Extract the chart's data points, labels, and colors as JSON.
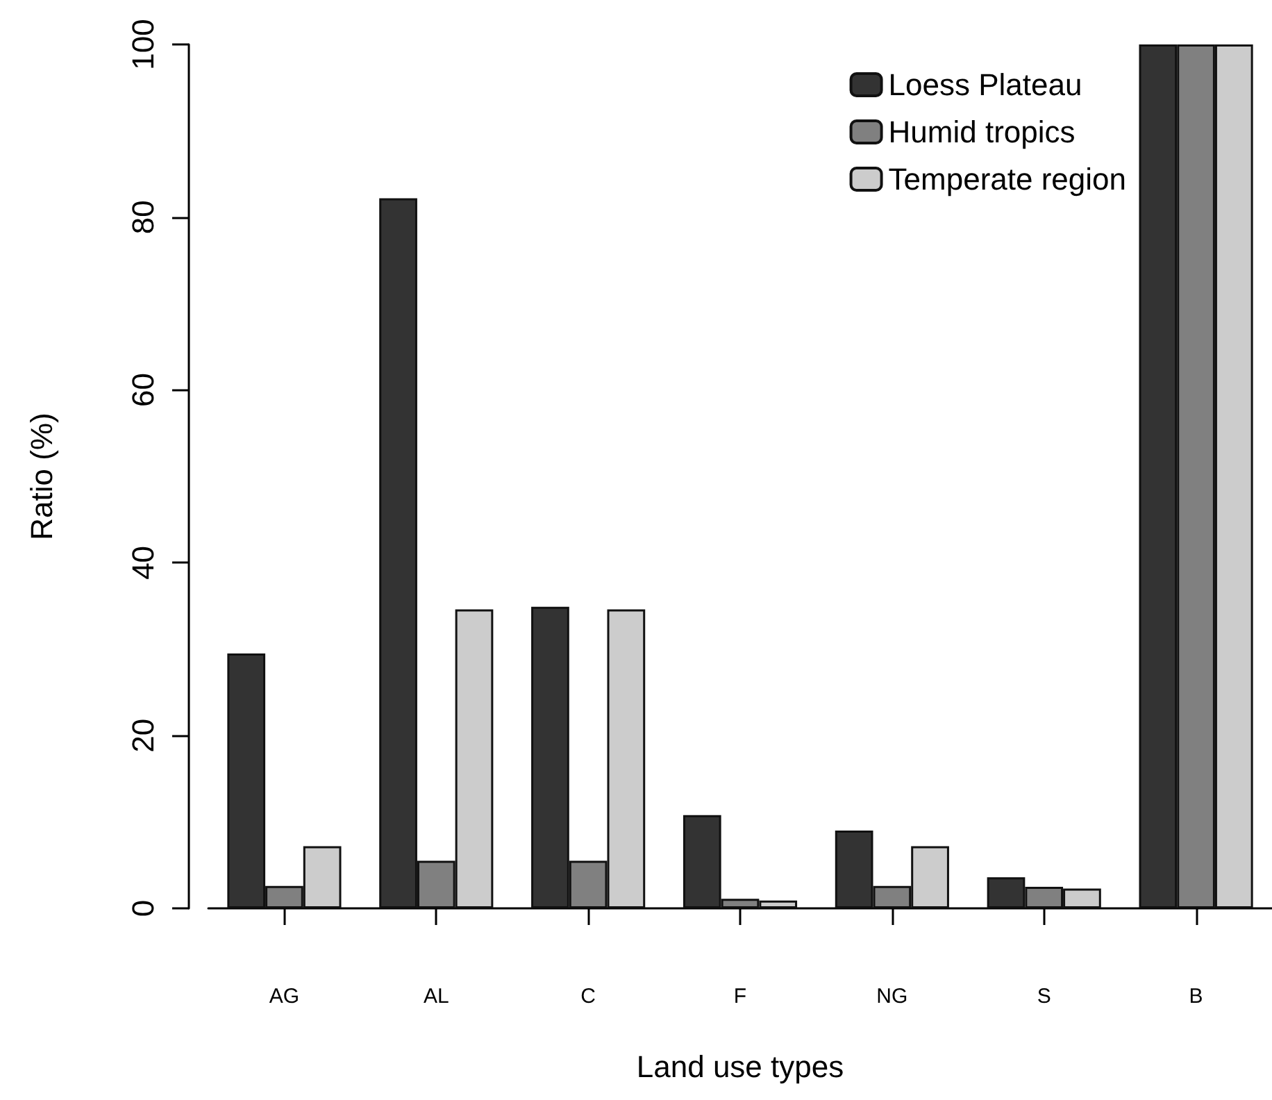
{
  "chart_data": {
    "type": "bar",
    "xlabel": "Land use types",
    "ylabel": "Ratio (%)",
    "categories": [
      "AG",
      "AL",
      "C",
      "F",
      "NG",
      "S",
      "B"
    ],
    "series": [
      {
        "name": "Loess Plateau",
        "color": "#333333",
        "values": [
          29.5,
          82.2,
          34.9,
          10.8,
          9.0,
          3.6,
          100
        ]
      },
      {
        "name": "Humid tropics",
        "color": "#808080",
        "values": [
          2.6,
          5.5,
          5.5,
          1.1,
          2.6,
          2.5,
          100
        ]
      },
      {
        "name": "Temperate region",
        "color": "#cccccc",
        "values": [
          7.2,
          34.6,
          34.6,
          0.9,
          7.2,
          2.3,
          100
        ]
      }
    ],
    "ylim": [
      0,
      100
    ],
    "yticks": [
      0,
      20,
      40,
      60,
      80,
      100
    ],
    "grid": false,
    "legend": "top right"
  }
}
